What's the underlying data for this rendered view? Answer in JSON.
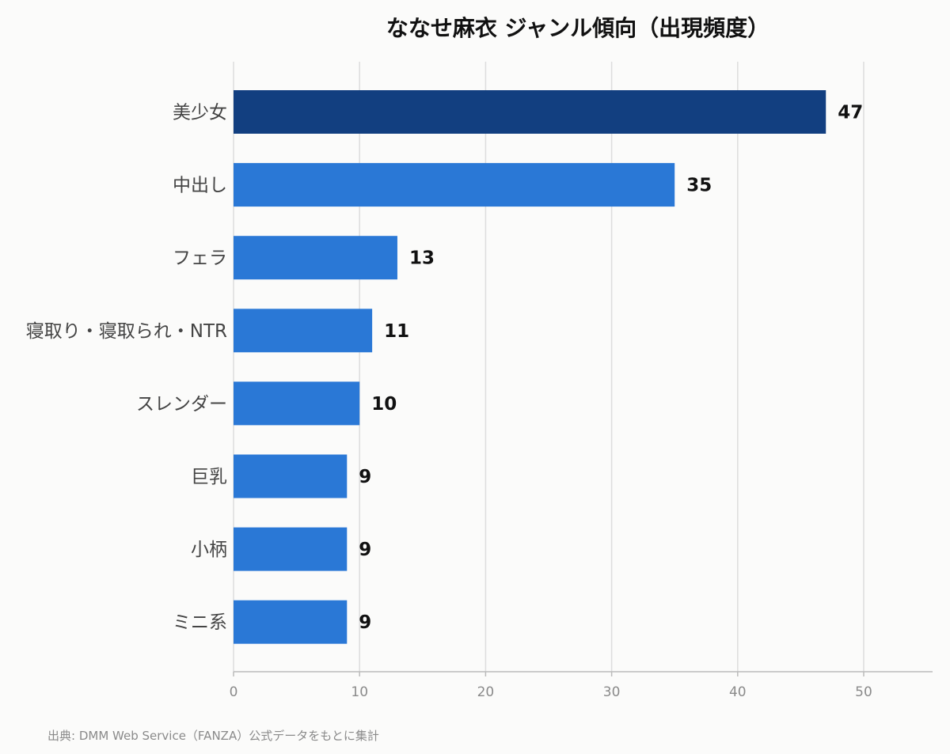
{
  "chart_data": {
    "type": "bar",
    "orientation": "horizontal",
    "title": "ななせ麻衣 ジャンル傾向（出現頻度）",
    "categories": [
      "美少女",
      "中出し",
      "フェラ",
      "寝取り・寝取られ・NTR",
      "スレンダー",
      "巨乳",
      "小柄",
      "ミニ系"
    ],
    "values": [
      47,
      35,
      13,
      11,
      10,
      9,
      9,
      9
    ],
    "xlim": [
      0,
      55
    ],
    "xticks": [
      0,
      10,
      20,
      30,
      40,
      50
    ],
    "grid": "vertical",
    "source": "出典: DMM Web Service（FANZA）公式データをもとに集計",
    "colors": {
      "highlight": "#123f80",
      "bar": "#2a78d6",
      "grid": "#dddddd",
      "axis": "#bbbbbb"
    }
  }
}
